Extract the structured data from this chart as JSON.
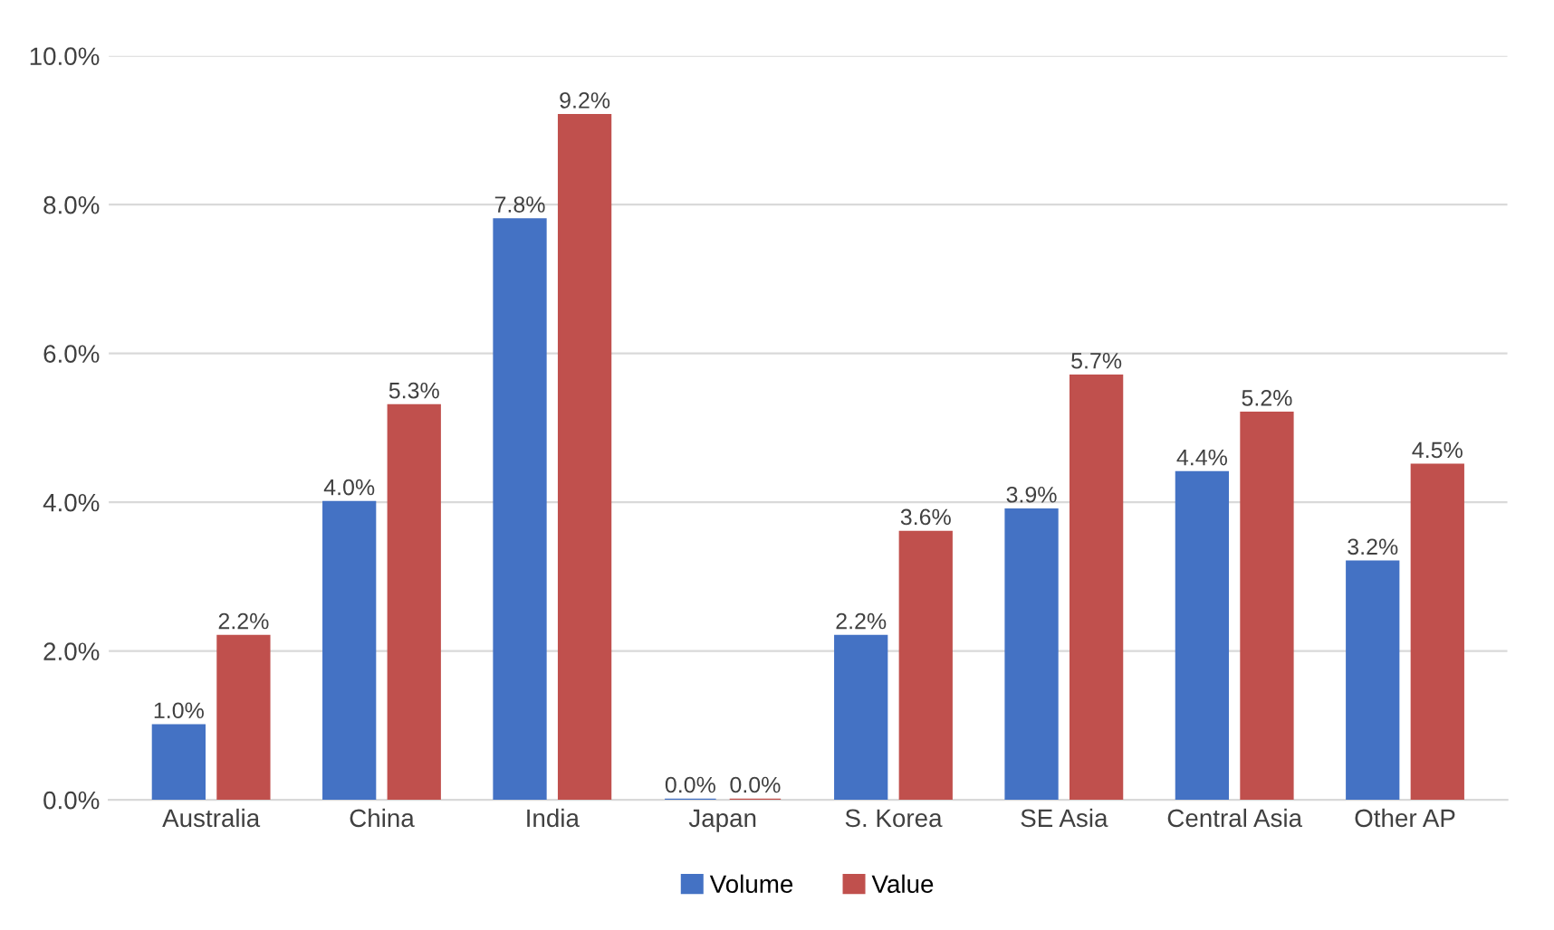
{
  "chart_data": {
    "type": "bar",
    "categories": [
      "Australia",
      "China",
      "India",
      "Japan",
      "S. Korea",
      "SE Asia",
      "Central Asia",
      "Other AP"
    ],
    "series": [
      {
        "name": "Volume",
        "color": "#4472c4",
        "values": [
          1.0,
          4.0,
          7.8,
          0.0,
          2.2,
          3.9,
          4.4,
          3.2
        ],
        "value_labels": [
          "1.0%",
          "4.0%",
          "7.8%",
          "0.0%",
          "2.2%",
          "3.9%",
          "4.4%",
          "3.2%"
        ]
      },
      {
        "name": "Value",
        "color": "#c0504d",
        "values": [
          2.2,
          5.3,
          9.2,
          0.0,
          3.6,
          5.7,
          5.2,
          4.5
        ],
        "value_labels": [
          "2.2%",
          "5.3%",
          "9.2%",
          "0.0%",
          "3.6%",
          "5.7%",
          "5.2%",
          "4.5%"
        ]
      }
    ],
    "ylim": [
      0,
      10
    ],
    "yticks": [
      {
        "value": 0,
        "label": "0.0%"
      },
      {
        "value": 2,
        "label": "2.0%"
      },
      {
        "value": 4,
        "label": "4.0%"
      },
      {
        "value": 6,
        "label": "6.0%"
      },
      {
        "value": 8,
        "label": "8.0%"
      },
      {
        "value": 10,
        "label": "10.0%"
      }
    ],
    "grid": "y",
    "legend": "bottom"
  }
}
